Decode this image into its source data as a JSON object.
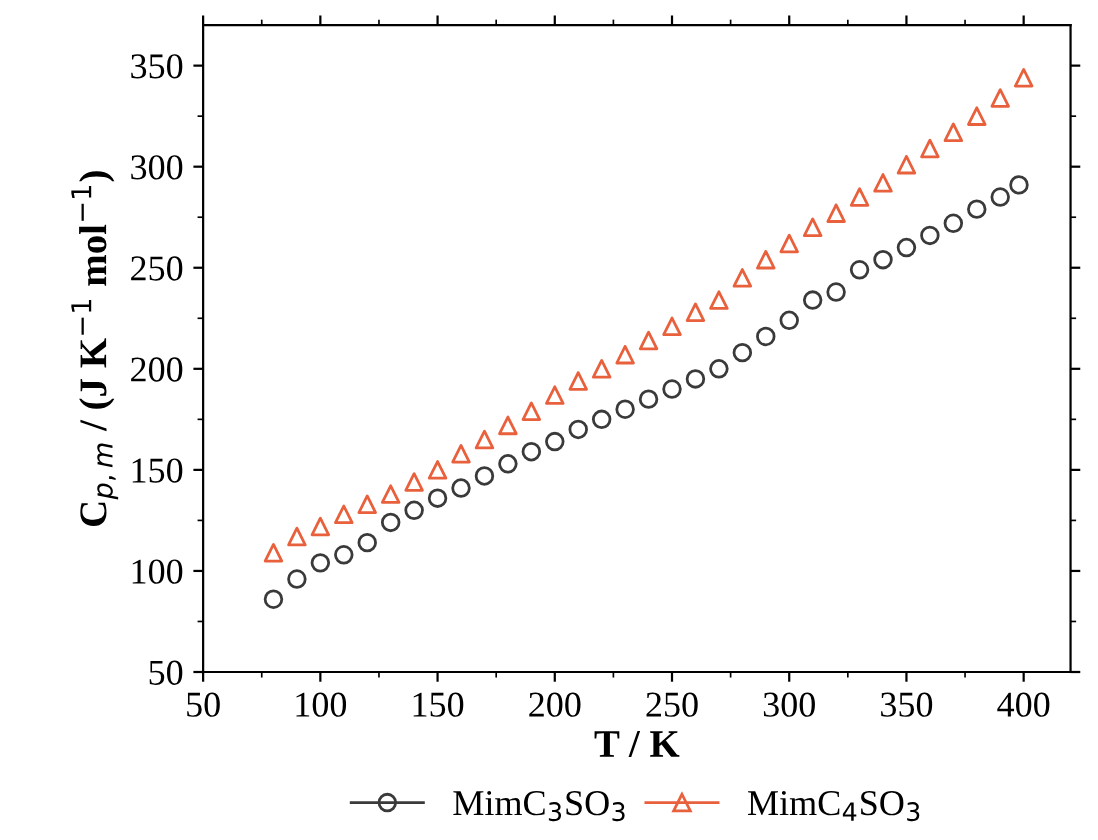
{
  "chart_data": {
    "type": "scatter",
    "xlabel": "T / K",
    "ylabel": "C$_{p,m}$ / (J K$^{−1}$ mol$^{−1}$)",
    "xlim": [
      50,
      420
    ],
    "ylim": [
      50,
      370
    ],
    "xticks": [
      50,
      100,
      150,
      200,
      250,
      300,
      350,
      400
    ],
    "yticks": [
      50,
      100,
      150,
      200,
      250,
      300,
      350
    ],
    "grid": false,
    "legend": "bottom",
    "series": [
      {
        "name": "MimC$_{3}$SO$_{3}$",
        "color": "#3a3a3a",
        "marker": "circle",
        "x": [
          80,
          90,
          100,
          110,
          120,
          130,
          140,
          150,
          160,
          170,
          180,
          190,
          200,
          210,
          220,
          230,
          240,
          250,
          260,
          270,
          280,
          290,
          300,
          310,
          320,
          330,
          340,
          350,
          360,
          370,
          380,
          390,
          398
        ],
        "values": [
          86,
          96,
          104,
          108,
          114,
          124,
          130,
          136,
          141,
          147,
          153,
          159,
          164,
          170,
          175,
          180,
          185,
          190,
          195,
          200,
          208,
          216,
          224,
          234,
          238,
          249,
          254,
          260,
          266,
          272,
          279,
          285,
          291
        ]
      },
      {
        "name": "MimC$_{4}$SO$_{3}$",
        "color": "#e8603c",
        "marker": "triangle",
        "x": [
          80,
          90,
          100,
          110,
          120,
          130,
          140,
          150,
          160,
          170,
          180,
          190,
          200,
          210,
          220,
          230,
          240,
          250,
          260,
          270,
          280,
          290,
          300,
          310,
          320,
          330,
          340,
          350,
          360,
          370,
          380,
          390,
          400
        ],
        "values": [
          109,
          117,
          122,
          128,
          133,
          138,
          144,
          150,
          158,
          165,
          172,
          179,
          187,
          194,
          200,
          207,
          214,
          221,
          228,
          234,
          245,
          254,
          262,
          270,
          277,
          285,
          292,
          301,
          309,
          317,
          325,
          334,
          344
        ]
      }
    ]
  }
}
